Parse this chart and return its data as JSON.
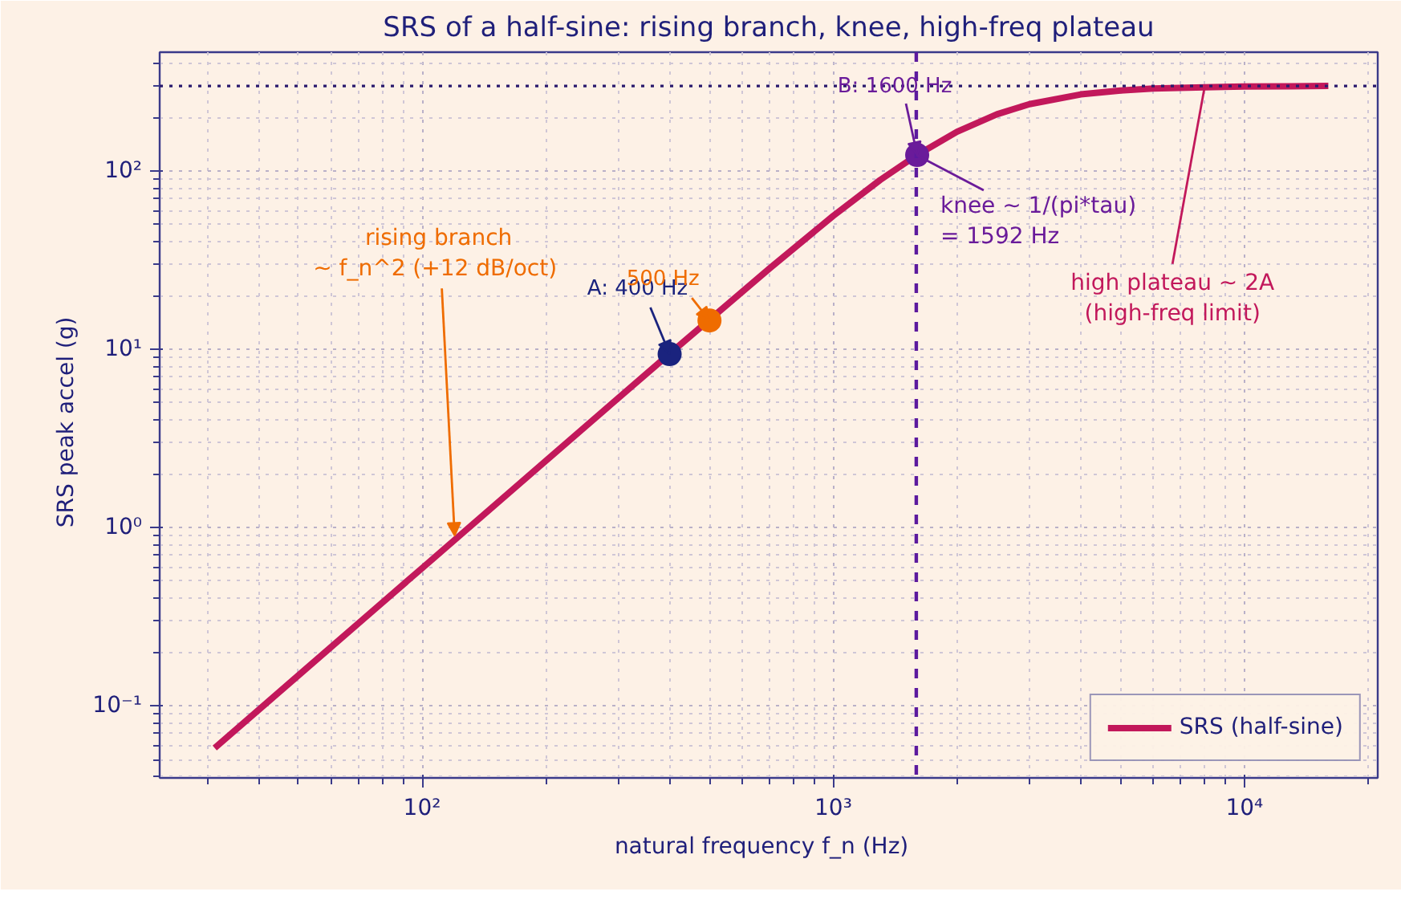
{
  "chart_data": {
    "type": "line",
    "title": "SRS of a half-sine: rising branch, knee, high-freq plateau",
    "xlabel": "natural frequency  f_n  (Hz)",
    "ylabel": "SRS  peak accel  (g)",
    "log": "xy",
    "grid": true,
    "legend": "bottom right",
    "xlim": [
      23,
      21100
    ],
    "ylim": [
      0.0394,
      464
    ],
    "xticks": [
      {
        "value": 100,
        "label": "10²"
      },
      {
        "value": 1000,
        "label": "10³"
      },
      {
        "value": 10000,
        "label": "10⁴"
      }
    ],
    "yticks": [
      {
        "value": 0.1,
        "label": "10⁻¹"
      },
      {
        "value": 1,
        "label": "10⁰"
      },
      {
        "value": 10,
        "label": "10¹"
      },
      {
        "value": 100,
        "label": "10²"
      }
    ],
    "series": [
      {
        "type": "line",
        "name": "SRS (half-sine)",
        "color": "#c2185b",
        "line_style": "solid",
        "x": [
          31.3,
          50,
          100,
          200,
          400,
          700,
          1000,
          1300,
          1600,
          2000,
          2500,
          3000,
          4000,
          5000,
          6000,
          8000,
          10000,
          13000,
          16000
        ],
        "values": [
          0.058,
          0.148,
          0.592,
          2.37,
          9.44,
          28.4,
          56.0,
          89.0,
          123,
          166,
          208,
          237,
          269,
          283,
          290,
          295,
          298,
          299,
          300
        ]
      },
      {
        "type": "scatter",
        "marker": "circle",
        "x": [
          400,
          500,
          1600
        ],
        "values": [
          9.4,
          14.5,
          123
        ],
        "colors": [
          "#1a237e",
          "#ef6c00",
          "#6a1b9a"
        ]
      }
    ],
    "ref_lines": [
      {
        "axis": "x",
        "value": 1592,
        "color": "#5c1a9e",
        "line_style": "dashed"
      },
      {
        "axis": "y",
        "value": 300,
        "color": "#2a1a6e",
        "line_style": "dotted"
      }
    ],
    "annotations": [
      {
        "text": "rising branch\n~ f_n^2  (+12 dB/oct)",
        "x": 120,
        "y": 0.9
      },
      {
        "text": "A: 400 Hz",
        "x": 400,
        "y": 9.4
      },
      {
        "text": "500 Hz",
        "x": 500,
        "y": 14.5
      },
      {
        "text": "B: 1600 Hz",
        "x": 1600,
        "y": 123
      },
      {
        "text": "knee ~ 1/(pi*tau)\n= 1592 Hz",
        "x": 1592,
        "y": 123
      },
      {
        "text": "high plateau ~ 2A\n(high-freq limit)",
        "x": 8000,
        "y": 295
      }
    ]
  }
}
